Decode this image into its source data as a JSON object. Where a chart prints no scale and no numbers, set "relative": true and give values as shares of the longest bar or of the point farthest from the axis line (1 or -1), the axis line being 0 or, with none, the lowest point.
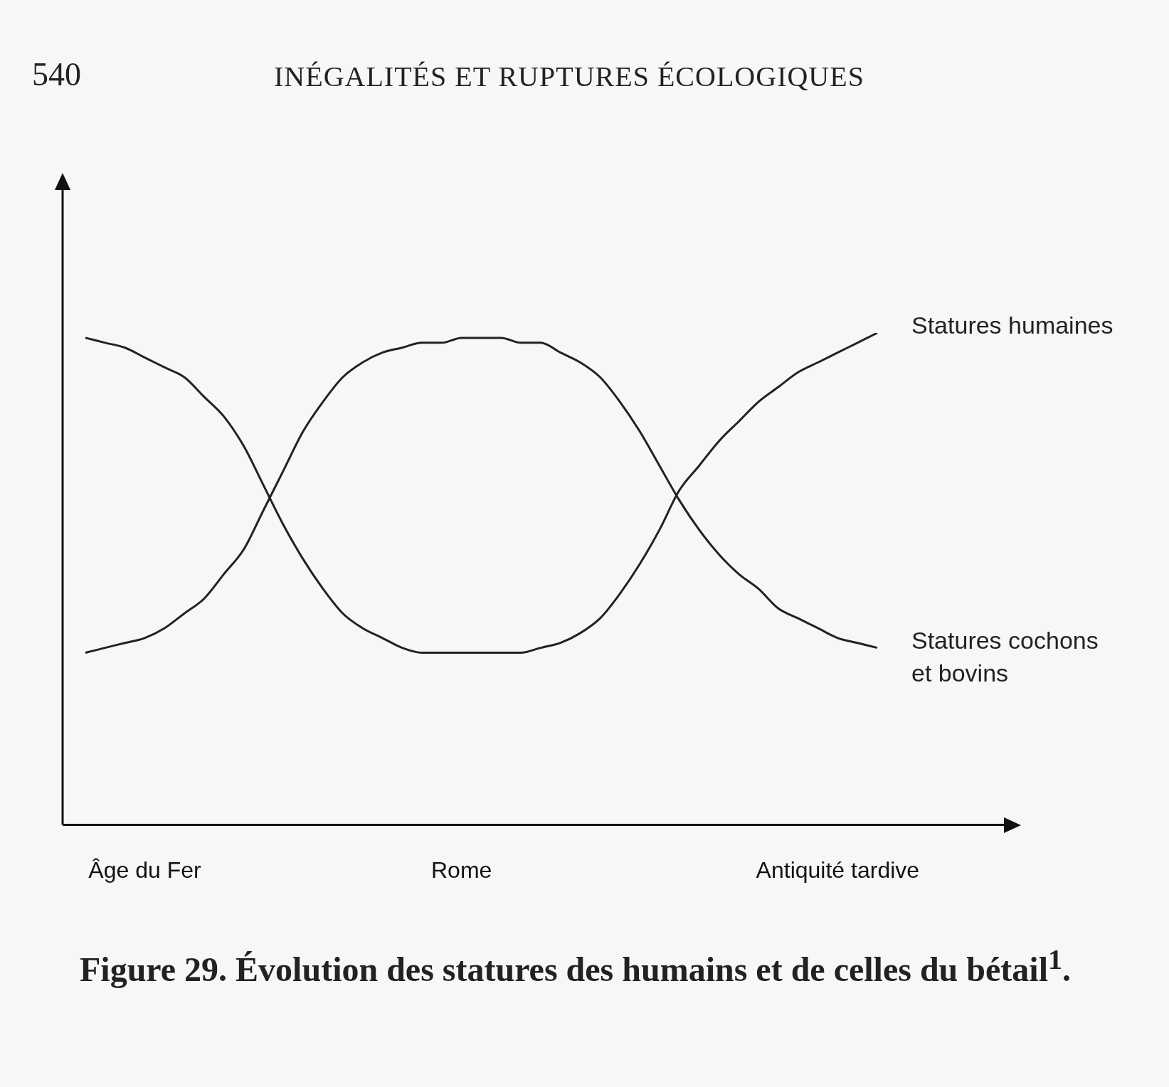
{
  "chart_data": {
    "type": "line",
    "relative": true,
    "marker": "none",
    "line_style": "solid",
    "title": "Figure 29. Évolution des statures des humains et de celles du bétail$^{1}$.",
    "annotations": [
      "540",
      "INÉGALITÉS ET RUPTURES ÉCOLOGIQUES"
    ],
    "categories": [
      null,
      null,
      null,
      "Âge du Fer",
      null,
      null,
      null,
      null,
      null,
      null,
      null,
      null,
      null,
      null,
      null,
      null,
      null,
      null,
      null,
      "Rome",
      null,
      null,
      null,
      null,
      null,
      null,
      null,
      null,
      null,
      null,
      null,
      null,
      null,
      null,
      null,
      null,
      null,
      null,
      "Antiquité tardive",
      null,
      null
    ],
    "series": [
      {
        "name": "Statures humaines",
        "color": "#222222",
        "values": [
          0.99,
          0.98,
          0.97,
          0.95,
          0.93,
          0.91,
          0.87,
          0.83,
          0.77,
          0.69,
          0.61,
          0.54,
          0.48,
          0.43,
          0.4,
          0.38,
          0.36,
          0.35,
          0.35,
          0.35,
          0.35,
          0.35,
          0.35,
          0.36,
          0.37,
          0.39,
          0.42,
          0.47,
          0.53,
          0.6,
          0.68,
          0.73,
          0.78,
          0.82,
          0.86,
          0.89,
          0.92,
          0.94,
          0.96,
          0.98,
          1.0
        ]
      },
      {
        "name": "Statures cochons et bovins",
        "color": "#222222",
        "values": [
          0.35,
          0.36,
          0.37,
          0.38,
          0.4,
          0.43,
          0.46,
          0.51,
          0.56,
          0.64,
          0.72,
          0.8,
          0.86,
          0.91,
          0.94,
          0.96,
          0.97,
          0.98,
          0.98,
          0.99,
          0.99,
          0.99,
          0.98,
          0.98,
          0.96,
          0.94,
          0.91,
          0.86,
          0.8,
          0.73,
          0.66,
          0.6,
          0.55,
          0.51,
          0.48,
          0.44,
          0.42,
          0.4,
          0.38,
          0.37,
          0.36
        ]
      }
    ]
  }
}
